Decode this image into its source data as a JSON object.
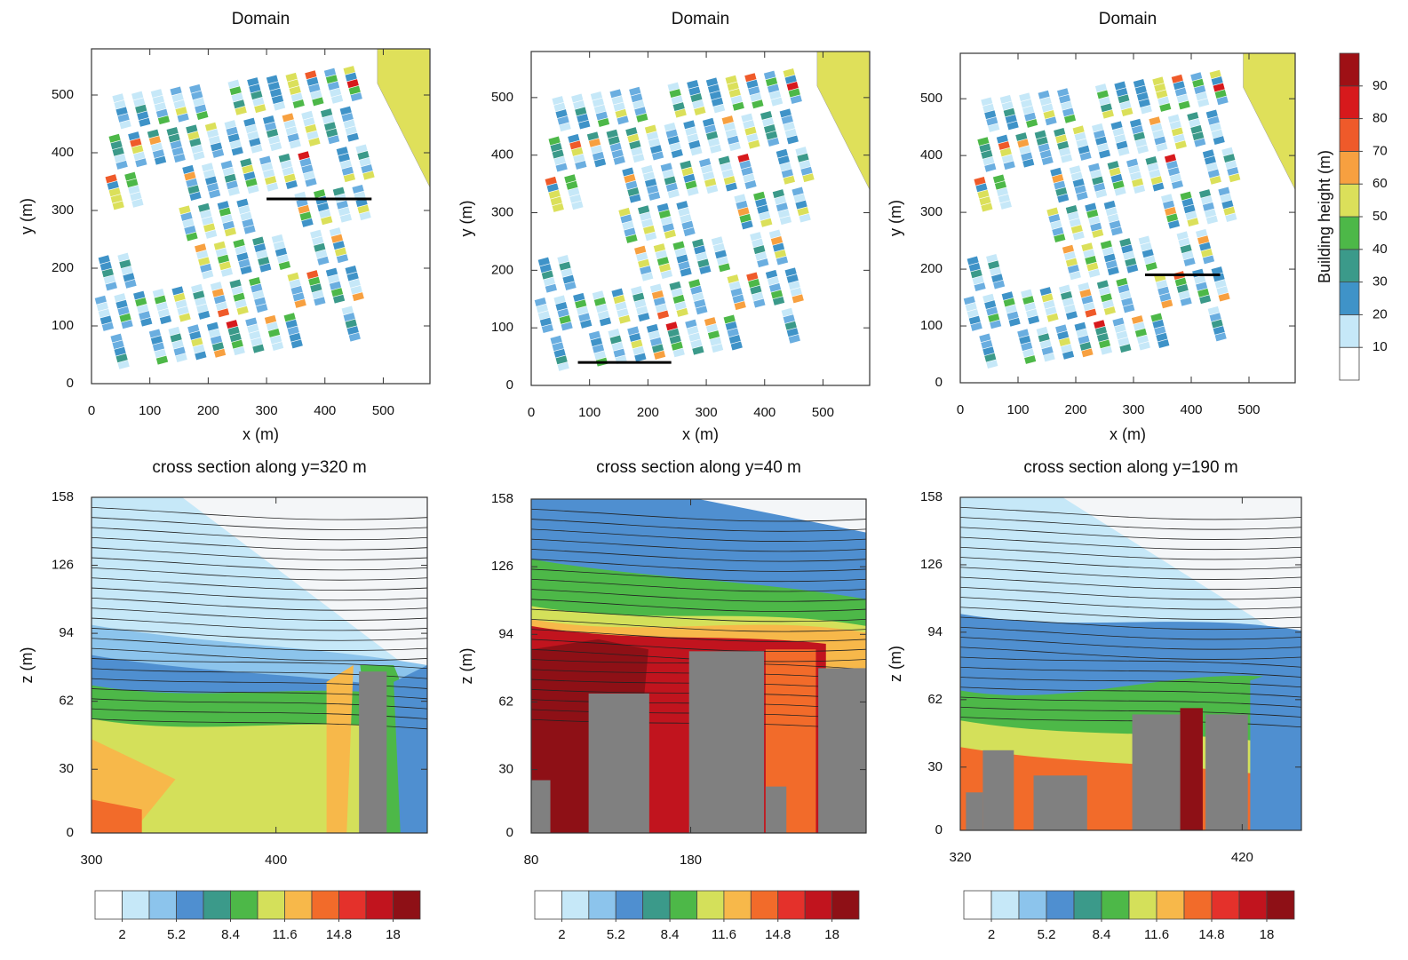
{
  "chart_data": [
    {
      "type": "map",
      "title": "Domain",
      "xlabel": "x (m)",
      "ylabel": "y (m)",
      "xlim": [
        0,
        580
      ],
      "ylim": [
        0,
        580
      ],
      "xticks": [
        0,
        100,
        200,
        300,
        400,
        500
      ],
      "yticks": [
        0,
        100,
        200,
        300,
        400,
        500
      ],
      "section": {
        "x": [
          300,
          480
        ],
        "y": [
          320,
          320
        ]
      }
    },
    {
      "type": "map",
      "title": "Domain",
      "xlabel": "x (m)",
      "ylabel": "y (m)",
      "xlim": [
        0,
        580
      ],
      "ylim": [
        0,
        580
      ],
      "xticks": [
        0,
        100,
        200,
        300,
        400,
        500
      ],
      "yticks": [
        0,
        100,
        200,
        300,
        400,
        500
      ],
      "section": {
        "x": [
          80,
          240
        ],
        "y": [
          40,
          40
        ]
      }
    },
    {
      "type": "map",
      "title": "Domain",
      "xlabel": "x (m)",
      "ylabel": "y (m)",
      "xlim": [
        0,
        580
      ],
      "ylim": [
        0,
        580
      ],
      "xticks": [
        0,
        100,
        200,
        300,
        400,
        500
      ],
      "yticks": [
        0,
        100,
        200,
        300,
        400,
        500
      ],
      "section": {
        "x": [
          320,
          450
        ],
        "y": [
          190,
          190
        ]
      }
    },
    {
      "type": "section",
      "title": "cross section along y=320 m",
      "ylabel": "z (m)",
      "xlim": [
        300,
        482
      ],
      "ylim": [
        0,
        158
      ],
      "xticks": [
        300,
        400
      ],
      "yticks": [
        0,
        30,
        62,
        94,
        126,
        158
      ]
    },
    {
      "type": "section",
      "title": "cross section along y=40 m",
      "ylabel": "z (m)",
      "xlim": [
        80,
        290
      ],
      "ylim": [
        0,
        158
      ],
      "xticks": [
        80,
        180
      ],
      "yticks": [
        0,
        30,
        62,
        94,
        126,
        158
      ]
    },
    {
      "type": "section",
      "title": "cross section along y=190 m",
      "ylabel": "z (m)",
      "xlim": [
        320,
        441
      ],
      "ylim": [
        0,
        158
      ],
      "xticks": [
        320,
        420
      ],
      "yticks": [
        0,
        30,
        62,
        94,
        126,
        158
      ]
    }
  ],
  "building_colorbar": {
    "label": "Building height (m)",
    "lim": [
      0,
      100
    ],
    "ticks": [
      10,
      20,
      30,
      40,
      50,
      60,
      70,
      80,
      90
    ],
    "colors": [
      "#ffffff",
      "#c6e8f8",
      "#6aaee0",
      "#3f93c8",
      "#3b9a8a",
      "#4db848",
      "#dbe05a",
      "#f7a040",
      "#ef5a2a",
      "#d7191c",
      "#9e1015"
    ]
  },
  "speed_colorbar": {
    "lim": [
      0.4,
      19.6
    ],
    "ticks": [
      2,
      5.2,
      8.4,
      11.6,
      14.8,
      18
    ],
    "colors": [
      "#ffffff",
      "#c6e8f8",
      "#8cc4ec",
      "#4f8fd0",
      "#3b9a8a",
      "#4db848",
      "#d4e05a",
      "#f7b84a",
      "#f26b2a",
      "#e4312b",
      "#c1141e",
      "#8e1016"
    ]
  }
}
